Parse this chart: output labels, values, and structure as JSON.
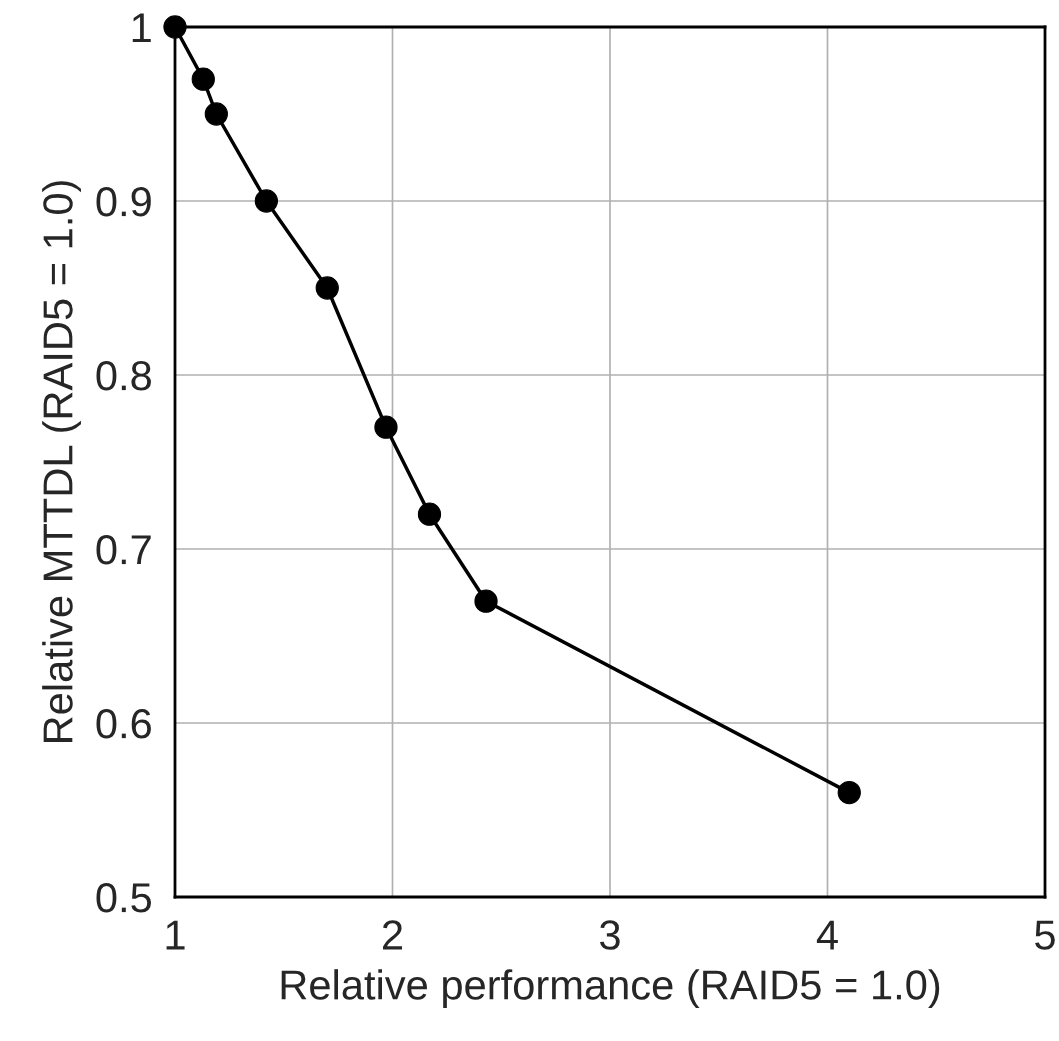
{
  "chart_data": {
    "type": "line",
    "xlabel": "Relative performance (RAID5 = 1.0)",
    "ylabel": "Relative MTTDL (RAID5 = 1.0)",
    "x": [
      1.0,
      1.13,
      1.19,
      1.42,
      1.7,
      1.97,
      2.17,
      2.43,
      4.1
    ],
    "series": [
      {
        "color": "#000000",
        "values": [
          1.0,
          0.97,
          0.95,
          0.9,
          0.85,
          0.77,
          0.72,
          0.67,
          0.56
        ]
      }
    ],
    "xlim": [
      1,
      5
    ],
    "ylim": [
      0.5,
      1
    ],
    "xticks": [
      1,
      2,
      3,
      4,
      5
    ],
    "yticks": [
      0.5,
      0.6,
      0.7,
      0.8,
      0.9,
      1
    ],
    "grid": true,
    "marker": "circle",
    "line_style": "solid"
  }
}
